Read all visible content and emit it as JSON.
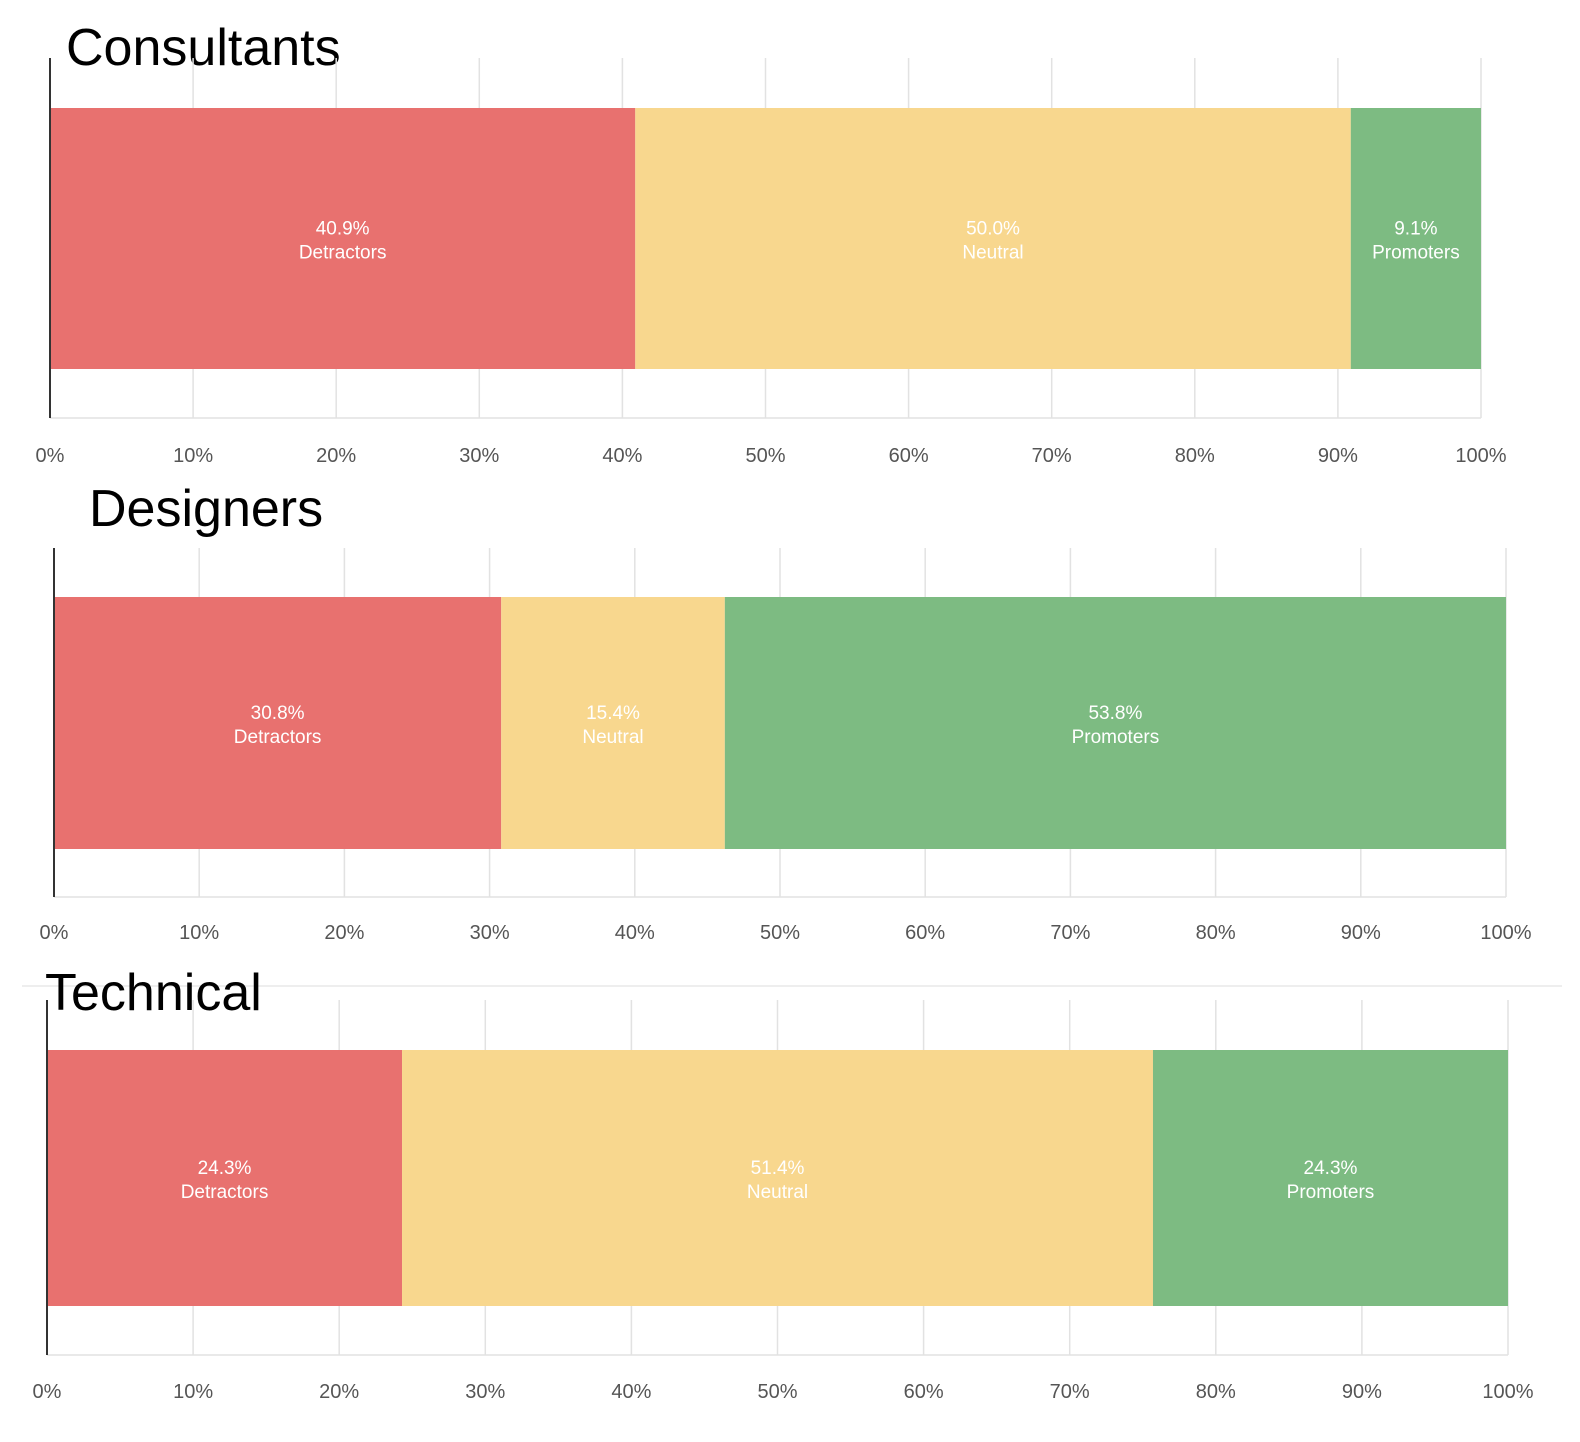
{
  "colors": {
    "detractors": "#e8716f",
    "neutral": "#f8d78e",
    "promoters": "#7dbb82",
    "grid": "#e2e2e2",
    "axis": "#333333",
    "tick_text": "#555555",
    "bar_label": "#ffffff"
  },
  "chart_data": [
    {
      "type": "bar",
      "orientation": "horizontal-stacked-100",
      "title": "Consultants",
      "xlim": [
        0,
        100
      ],
      "ticks": [
        "0%",
        "10%",
        "20%",
        "30%",
        "40%",
        "50%",
        "60%",
        "70%",
        "80%",
        "90%",
        "100%"
      ],
      "grid": true,
      "series": [
        {
          "name": "Detractors",
          "value": 40.9,
          "value_label": "40.9%"
        },
        {
          "name": "Neutral",
          "value": 50.0,
          "value_label": "50.0%"
        },
        {
          "name": "Promoters",
          "value": 9.1,
          "value_label": "9.1%"
        }
      ]
    },
    {
      "type": "bar",
      "orientation": "horizontal-stacked-100",
      "title": "Designers",
      "xlim": [
        0,
        100
      ],
      "ticks": [
        "0%",
        "10%",
        "20%",
        "30%",
        "40%",
        "50%",
        "60%",
        "70%",
        "80%",
        "90%",
        "100%"
      ],
      "grid": true,
      "series": [
        {
          "name": "Detractors",
          "value": 30.8,
          "value_label": "30.8%"
        },
        {
          "name": "Neutral",
          "value": 15.4,
          "value_label": "15.4%"
        },
        {
          "name": "Promoters",
          "value": 53.8,
          "value_label": "53.8%"
        }
      ]
    },
    {
      "type": "bar",
      "orientation": "horizontal-stacked-100",
      "title": "Technical",
      "xlim": [
        0,
        100
      ],
      "ticks": [
        "0%",
        "10%",
        "20%",
        "30%",
        "40%",
        "50%",
        "60%",
        "70%",
        "80%",
        "90%",
        "100%"
      ],
      "grid": true,
      "series": [
        {
          "name": "Detractors",
          "value": 24.3,
          "value_label": "24.3%"
        },
        {
          "name": "Neutral",
          "value": 51.4,
          "value_label": "51.4%"
        },
        {
          "name": "Promoters",
          "value": 24.3,
          "value_label": "24.3%"
        }
      ]
    }
  ]
}
